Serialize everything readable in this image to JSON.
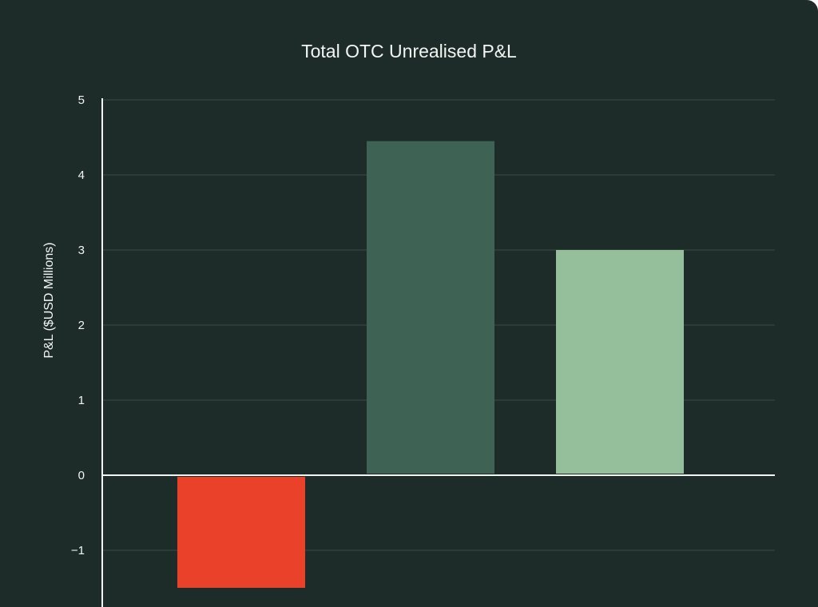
{
  "chart_data": {
    "type": "bar",
    "title": "Total OTC Unrealised P&L",
    "ylabel": "P&L ($USD Millions)",
    "xlabel": "",
    "categories": [
      "",
      "",
      ""
    ],
    "values": [
      -1.5,
      4.45,
      3.0
    ],
    "bar_colors": [
      "#ea412a",
      "#3e6355",
      "#95bf9a"
    ],
    "yticks": [
      -1,
      0,
      1,
      2,
      3,
      4,
      5
    ],
    "ytick_labels": [
      "−1",
      "0",
      "1",
      "2",
      "3",
      "4",
      "5"
    ],
    "ylim": [
      -1.75,
      5
    ],
    "grid": true,
    "colors": {
      "background": "#1e2c29",
      "gridline": "#3a4a46",
      "axis": "#f2f5f2",
      "text": "#f2f5f2"
    }
  }
}
